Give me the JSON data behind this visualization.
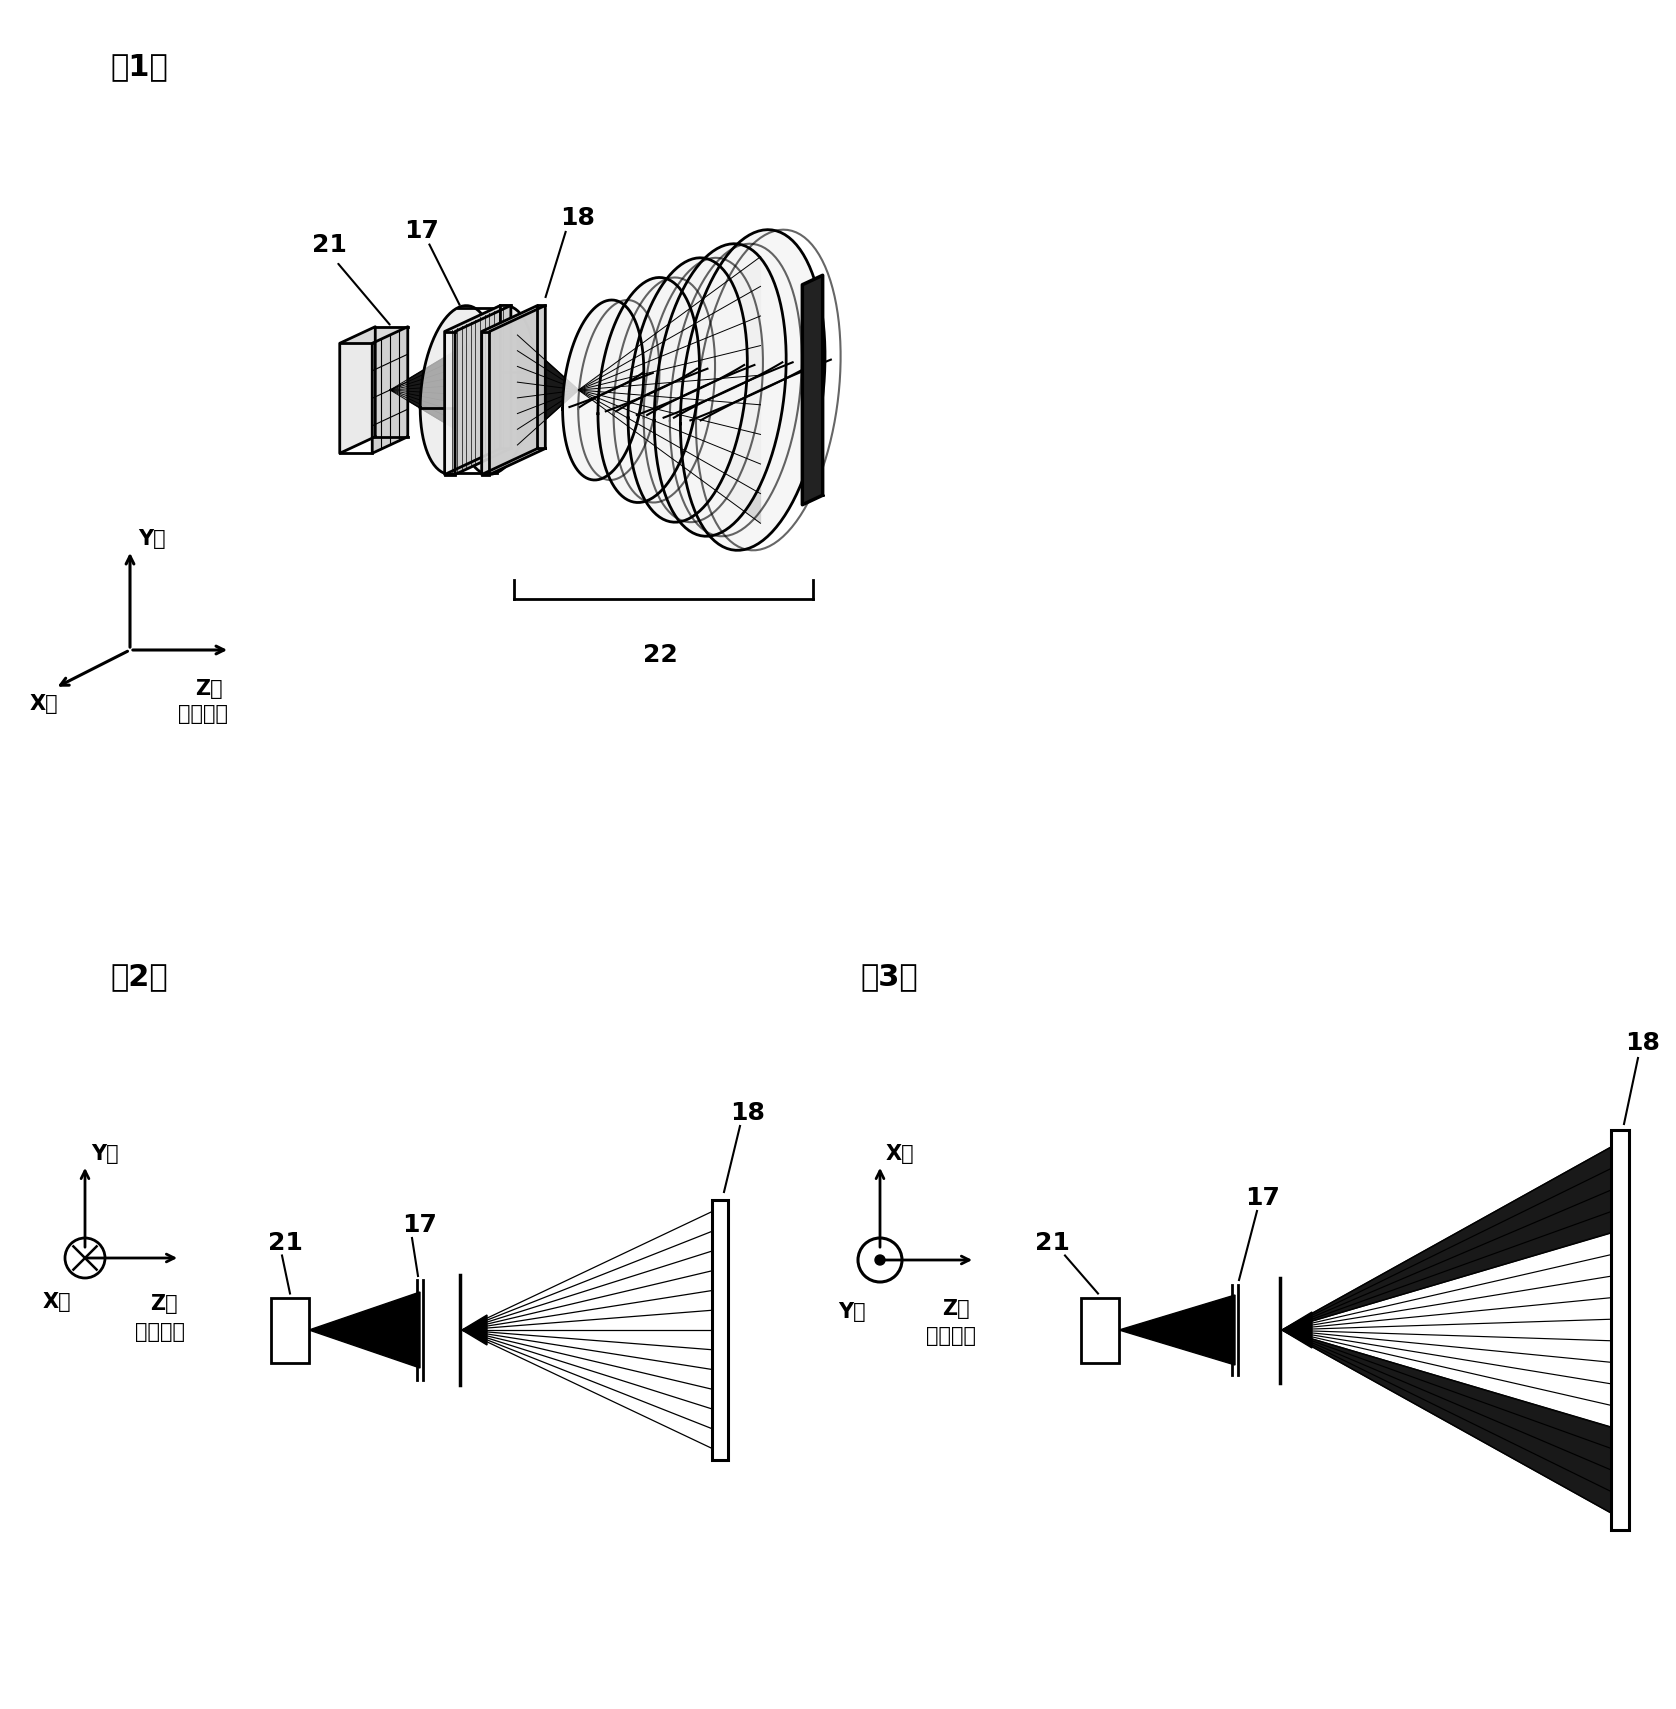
{
  "bg_color": "#ffffff",
  "text_color": "#000000",
  "label1": "（1）",
  "label2": "（2）",
  "label3": "（3）",
  "num_17": "17",
  "num_18": "18",
  "num_21": "21",
  "num_22": "22",
  "y_axis": "Y軸",
  "x_axis": "X軸",
  "z_axis": "Z軸",
  "z_axis_sub": "（光軸）",
  "label_fontsize": 20,
  "number_fontsize": 18,
  "axis_fontsize": 15
}
